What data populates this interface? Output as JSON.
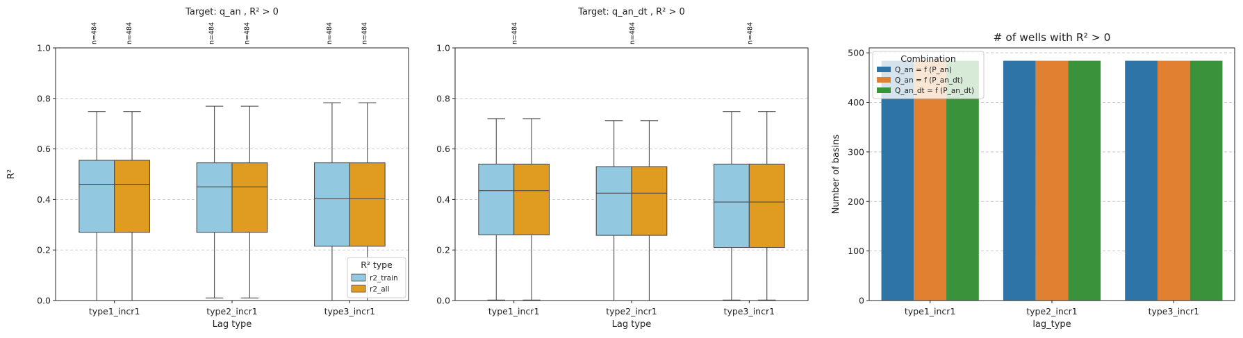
{
  "chart_data": [
    {
      "type": "box",
      "title": "Target: q_an , R² > 0",
      "xlabel": "Lag type",
      "ylabel": "R²",
      "ylim": [
        0,
        1.0
      ],
      "yticks": [
        "0.0",
        "0.2",
        "0.4",
        "0.6",
        "0.8",
        "1.0"
      ],
      "grid": true,
      "categories": [
        "type1_incr1",
        "type2_incr1",
        "type3_incr1"
      ],
      "legend": {
        "title": "R² type",
        "position": "lower-right"
      },
      "series": [
        {
          "name": "r2_train",
          "color": "#92c9e0",
          "boxes": [
            {
              "whislo": 0.0,
              "q1": 0.27,
              "med": 0.46,
              "q3": 0.555,
              "whishi": 0.748
            },
            {
              "whislo": 0.01,
              "q1": 0.27,
              "med": 0.45,
              "q3": 0.545,
              "whishi": 0.769
            },
            {
              "whislo": 0.0,
              "q1": 0.215,
              "med": 0.403,
              "q3": 0.545,
              "whishi": 0.783
            }
          ],
          "n": [
            "n=484",
            "n=484",
            "n=484"
          ]
        },
        {
          "name": "r2_all",
          "color": "#e09c20",
          "boxes": [
            {
              "whislo": 0.0,
              "q1": 0.27,
              "med": 0.46,
              "q3": 0.555,
              "whishi": 0.748
            },
            {
              "whislo": 0.01,
              "q1": 0.27,
              "med": 0.45,
              "q3": 0.545,
              "whishi": 0.769
            },
            {
              "whislo": 0.0,
              "q1": 0.215,
              "med": 0.403,
              "q3": 0.545,
              "whishi": 0.783
            }
          ],
          "n": [
            "n=484",
            "n=484",
            "n=484"
          ]
        }
      ]
    },
    {
      "type": "box",
      "title": "Target: q_an_dt , R² > 0",
      "xlabel": "Lag type",
      "ylabel": "",
      "ylim": [
        0,
        1.0
      ],
      "yticks": [
        "0.0",
        "0.2",
        "0.4",
        "0.6",
        "0.8",
        "1.0"
      ],
      "grid": true,
      "categories": [
        "type1_incr1",
        "type2_incr1",
        "type3_incr1"
      ],
      "n_labels": [
        "n=484",
        "n=484",
        "n=484"
      ],
      "series": [
        {
          "name": "r2_train",
          "color": "#92c9e0",
          "boxes": [
            {
              "whislo": 0.002,
              "q1": 0.26,
              "med": 0.435,
              "q3": 0.54,
              "whishi": 0.72
            },
            {
              "whislo": 0.0,
              "q1": 0.258,
              "med": 0.425,
              "q3": 0.53,
              "whishi": 0.712
            },
            {
              "whislo": 0.002,
              "q1": 0.21,
              "med": 0.39,
              "q3": 0.54,
              "whishi": 0.748
            }
          ]
        },
        {
          "name": "r2_all",
          "color": "#e09c20",
          "boxes": [
            {
              "whislo": 0.002,
              "q1": 0.26,
              "med": 0.435,
              "q3": 0.54,
              "whishi": 0.72
            },
            {
              "whislo": 0.0,
              "q1": 0.258,
              "med": 0.425,
              "q3": 0.53,
              "whishi": 0.712
            },
            {
              "whislo": 0.002,
              "q1": 0.21,
              "med": 0.39,
              "q3": 0.54,
              "whishi": 0.748
            }
          ]
        }
      ]
    },
    {
      "type": "bar",
      "title": "# of wells with R² > 0",
      "xlabel": "lag_type",
      "ylabel": "Number of basins",
      "ylim": [
        0,
        510
      ],
      "yticks": [
        "0",
        "100",
        "200",
        "300",
        "400",
        "500"
      ],
      "grid": true,
      "categories": [
        "type1_incr1",
        "type2_incr1",
        "type3_incr1"
      ],
      "legend": {
        "title": "Combination",
        "position": "top-left"
      },
      "series": [
        {
          "name": "Q_an = f (P_an)",
          "color": "#2f74a6",
          "values": [
            484,
            484,
            484
          ]
        },
        {
          "name": "Q_an = f (P_an_dt)",
          "color": "#e08030",
          "values": [
            484,
            484,
            484
          ]
        },
        {
          "name": "Q_an_dt = f (P_an_dt)",
          "color": "#3a923a",
          "values": [
            484,
            484,
            484
          ]
        }
      ]
    }
  ]
}
